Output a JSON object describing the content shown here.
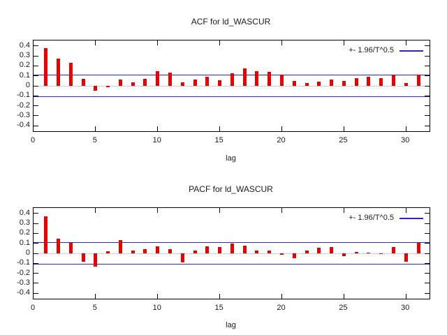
{
  "colors": {
    "background": "#ffffff",
    "bar": "#e60000",
    "band_line": "#2727bb",
    "zero_line": "#a8a8a8",
    "axis": "#000000",
    "text": "#1a1a1a"
  },
  "chart_data": [
    {
      "id": "acf",
      "type": "bar",
      "title": "ACF for ld_WASCUR",
      "xlabel": "lag",
      "legend_label": "+- 1.96/T^0.5",
      "legend_position": "top-right-inside",
      "grid": false,
      "xlim": [
        0,
        31.9
      ],
      "ylim": [
        -0.455,
        0.455
      ],
      "xticks": [
        0,
        5,
        10,
        15,
        20,
        25,
        30
      ],
      "yticks": [
        -0.4,
        -0.3,
        -0.2,
        -0.1,
        0,
        0.1,
        0.2,
        0.3,
        0.4
      ],
      "confidence_band": 0.107,
      "lags": [
        1,
        2,
        3,
        4,
        5,
        6,
        7,
        8,
        9,
        10,
        11,
        12,
        13,
        14,
        15,
        16,
        17,
        18,
        19,
        20,
        21,
        22,
        23,
        24,
        25,
        26,
        27,
        28,
        29,
        30,
        31
      ],
      "values": [
        0.38,
        0.27,
        0.23,
        0.07,
        -0.05,
        -0.012,
        0.065,
        0.035,
        0.07,
        0.145,
        0.13,
        0.035,
        0.065,
        0.09,
        0.055,
        0.125,
        0.175,
        0.15,
        0.14,
        0.11,
        0.05,
        0.03,
        0.045,
        0.065,
        0.05,
        0.08,
        0.09,
        0.075,
        0.105,
        0.03,
        0.11
      ]
    },
    {
      "id": "pacf",
      "type": "bar",
      "title": "PACF for ld_WASCUR",
      "xlabel": "lag",
      "legend_label": "+- 1.96/T^0.5",
      "legend_position": "top-right-inside",
      "grid": false,
      "xlim": [
        0,
        31.9
      ],
      "ylim": [
        -0.455,
        0.455
      ],
      "xticks": [
        0,
        5,
        10,
        15,
        20,
        25,
        30
      ],
      "yticks": [
        -0.4,
        -0.3,
        -0.2,
        -0.1,
        0,
        0.1,
        0.2,
        0.3,
        0.4
      ],
      "confidence_band": 0.107,
      "lags": [
        1,
        2,
        3,
        4,
        5,
        6,
        7,
        8,
        9,
        10,
        11,
        12,
        13,
        14,
        15,
        16,
        17,
        18,
        19,
        20,
        21,
        22,
        23,
        24,
        25,
        26,
        27,
        28,
        29,
        30,
        31
      ],
      "values": [
        0.37,
        0.15,
        0.105,
        -0.085,
        -0.13,
        0.02,
        0.13,
        0.03,
        0.04,
        0.07,
        0.04,
        -0.09,
        0.03,
        0.07,
        0.06,
        0.095,
        0.08,
        0.03,
        0.025,
        -0.015,
        -0.05,
        0.03,
        0.055,
        0.06,
        -0.03,
        0.015,
        0.005,
        -0.01,
        0.06,
        -0.085,
        0.105
      ]
    }
  ]
}
